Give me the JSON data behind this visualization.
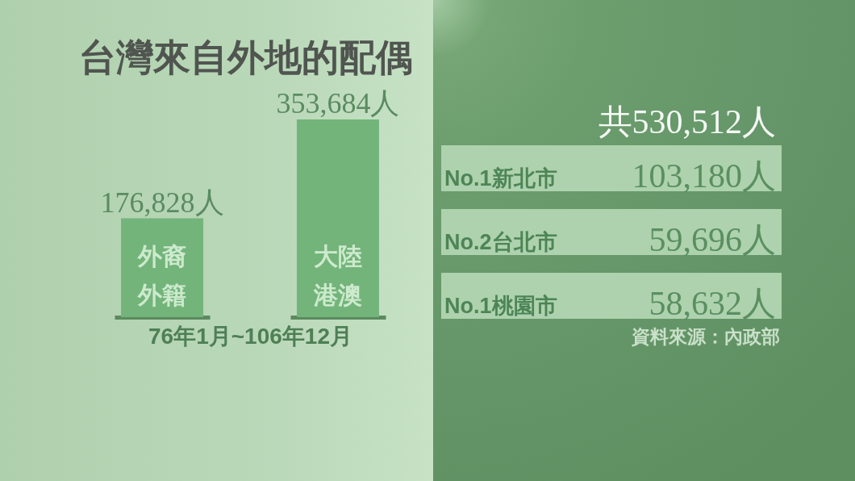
{
  "chart_data": [
    {
      "type": "bar",
      "title": "台灣來自外地的配偶",
      "categories": [
        "外裔外籍",
        "大陸港澳"
      ],
      "values": [
        176828,
        353684
      ],
      "value_labels": [
        "176,828人",
        "353,684人"
      ],
      "color": "#73b47b",
      "xlabel": "76年1月~106年12月"
    },
    {
      "type": "other",
      "title": "共530,512人",
      "annotations": [
        "No.1新北市",
        "103,180人",
        "No.2台北市",
        "59,696人",
        "No.1桃園市",
        "58,632人",
        "資料來源：內政部"
      ]
    }
  ]
}
